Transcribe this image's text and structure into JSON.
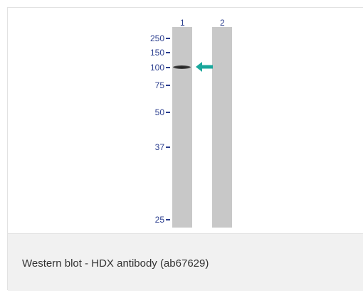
{
  "lanes": [
    "1",
    "2"
  ],
  "markers": [
    "250",
    "150",
    "100",
    "75",
    "50",
    "37",
    "25"
  ],
  "caption": "Western blot - HDX antibody (ab67629)",
  "colors": {
    "marker_text": "#2c3f8f",
    "arrow": "#1aa79c",
    "lane": "#c8c8c8",
    "caption_bg": "#f1f1f1"
  },
  "icons": {
    "arrow": "arrow-left-icon"
  }
}
